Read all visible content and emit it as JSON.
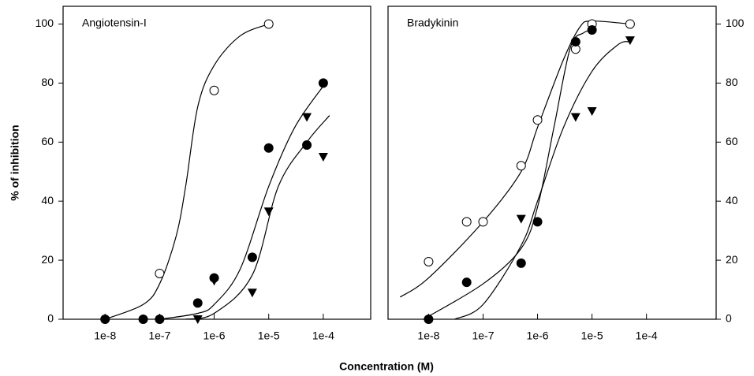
{
  "xlabel": "Concentration (M)",
  "chart_data": [
    {
      "type": "scatter",
      "title": "Angiotensin-I",
      "ylabel": "% of inhibition",
      "yaxis_side": "left",
      "xscale": "log",
      "xlim": [
        1.7e-09,
        0.00074
      ],
      "ylim": [
        0,
        106
      ],
      "xticks": [
        {
          "value": 1e-08,
          "label": "1e-8"
        },
        {
          "value": 1e-07,
          "label": "1e-7"
        },
        {
          "value": 1e-06,
          "label": "1e-6"
        },
        {
          "value": 1e-05,
          "label": "1e-5"
        },
        {
          "value": 0.0001,
          "label": "1e-4"
        }
      ],
      "yticks": [
        0,
        20,
        40,
        60,
        80,
        100
      ],
      "series": [
        {
          "marker": "open-circle",
          "color": "#000000",
          "x": [
            1e-07,
            1e-06,
            1e-05
          ],
          "values": [
            15.5,
            77.5,
            100
          ]
        },
        {
          "marker": "filled-circle",
          "color": "#000000",
          "x": [
            1e-08,
            5e-08,
            1e-07,
            5e-07,
            1e-06,
            5e-06,
            1e-05,
            5e-05,
            0.0001
          ],
          "values": [
            0,
            0,
            0,
            5.5,
            14,
            21,
            58,
            59,
            80
          ]
        },
        {
          "marker": "triangle-down",
          "color": "#000000",
          "x": [
            5e-07,
            1e-06,
            5e-06,
            1e-05,
            5e-05,
            0.0001
          ],
          "values": [
            0,
            13,
            9,
            36.5,
            68.5,
            55
          ]
        }
      ],
      "fits": [
        {
          "color": "#000000",
          "x": [
            1e-08,
            5e-08,
            1e-07,
            2e-07,
            3e-07,
            5e-07,
            1e-06,
            3e-06,
            1e-05
          ],
          "values": [
            0,
            5,
            12,
            28,
            45,
            72,
            86,
            96,
            100
          ]
        },
        {
          "color": "#000000",
          "x": [
            1e-07,
            5e-07,
            1e-06,
            3e-06,
            1e-05,
            3e-05,
            0.0001
          ],
          "values": [
            0,
            2,
            5,
            17,
            45,
            65,
            79
          ]
        },
        {
          "color": "#000000",
          "x": [
            3e-07,
            1e-06,
            5e-06,
            1.5e-05,
            5e-05,
            0.00013
          ],
          "values": [
            0,
            2,
            15,
            45,
            60,
            69
          ]
        }
      ]
    },
    {
      "type": "scatter",
      "title": "Bradykinin",
      "ylabel": "% of inhibition",
      "yaxis_side": "right",
      "xscale": "log",
      "xlim": [
        1.8e-09,
        0.0019
      ],
      "ylim": [
        0,
        106
      ],
      "xticks": [
        {
          "value": 1e-08,
          "label": "1e-8"
        },
        {
          "value": 1e-07,
          "label": "1e-7"
        },
        {
          "value": 1e-06,
          "label": "1e-6"
        },
        {
          "value": 1e-05,
          "label": "1e-5"
        },
        {
          "value": 0.0001,
          "label": "1e-4"
        }
      ],
      "yticks": [
        0,
        20,
        40,
        60,
        80,
        100
      ],
      "series": [
        {
          "marker": "open-circle",
          "color": "#000000",
          "x": [
            1e-08,
            5e-08,
            1e-07,
            5e-07,
            1e-06,
            5e-06,
            1e-05,
            5e-05
          ],
          "values": [
            19.5,
            33,
            33,
            52,
            67.5,
            91.5,
            100,
            100
          ]
        },
        {
          "marker": "filled-circle",
          "color": "#000000",
          "x": [
            1e-08,
            5e-08,
            5e-07,
            1e-06,
            5e-06,
            1e-05
          ],
          "values": [
            0,
            12.5,
            19,
            33,
            94,
            98
          ]
        },
        {
          "marker": "triangle-down",
          "color": "#000000",
          "x": [
            5e-07,
            5e-06,
            1e-05,
            5e-05
          ],
          "values": [
            34,
            68.5,
            70.5,
            94.5
          ]
        }
      ],
      "fits": [
        {
          "color": "#000000",
          "x": [
            3e-09,
            1e-08,
            1e-07,
            5e-07,
            1e-06,
            3e-06,
            6e-06,
            1e-05,
            5e-05
          ],
          "values": [
            7.5,
            14,
            33,
            50,
            65,
            88,
            99,
            101,
            100
          ]
        },
        {
          "color": "#000000",
          "x": [
            8e-09,
            1e-07,
            5e-07,
            1e-06,
            2e-06,
            4e-06,
            7e-06,
            1e-05
          ],
          "values": [
            0,
            12,
            24,
            38,
            65,
            92,
            97,
            98
          ]
        },
        {
          "color": "#000000",
          "x": [
            3e-08,
            1e-07,
            5e-07,
            1e-06,
            3e-06,
            1e-05,
            3e-05,
            5e-05
          ],
          "values": [
            0,
            5,
            25,
            40,
            65,
            84,
            93,
            94
          ]
        }
      ]
    }
  ]
}
